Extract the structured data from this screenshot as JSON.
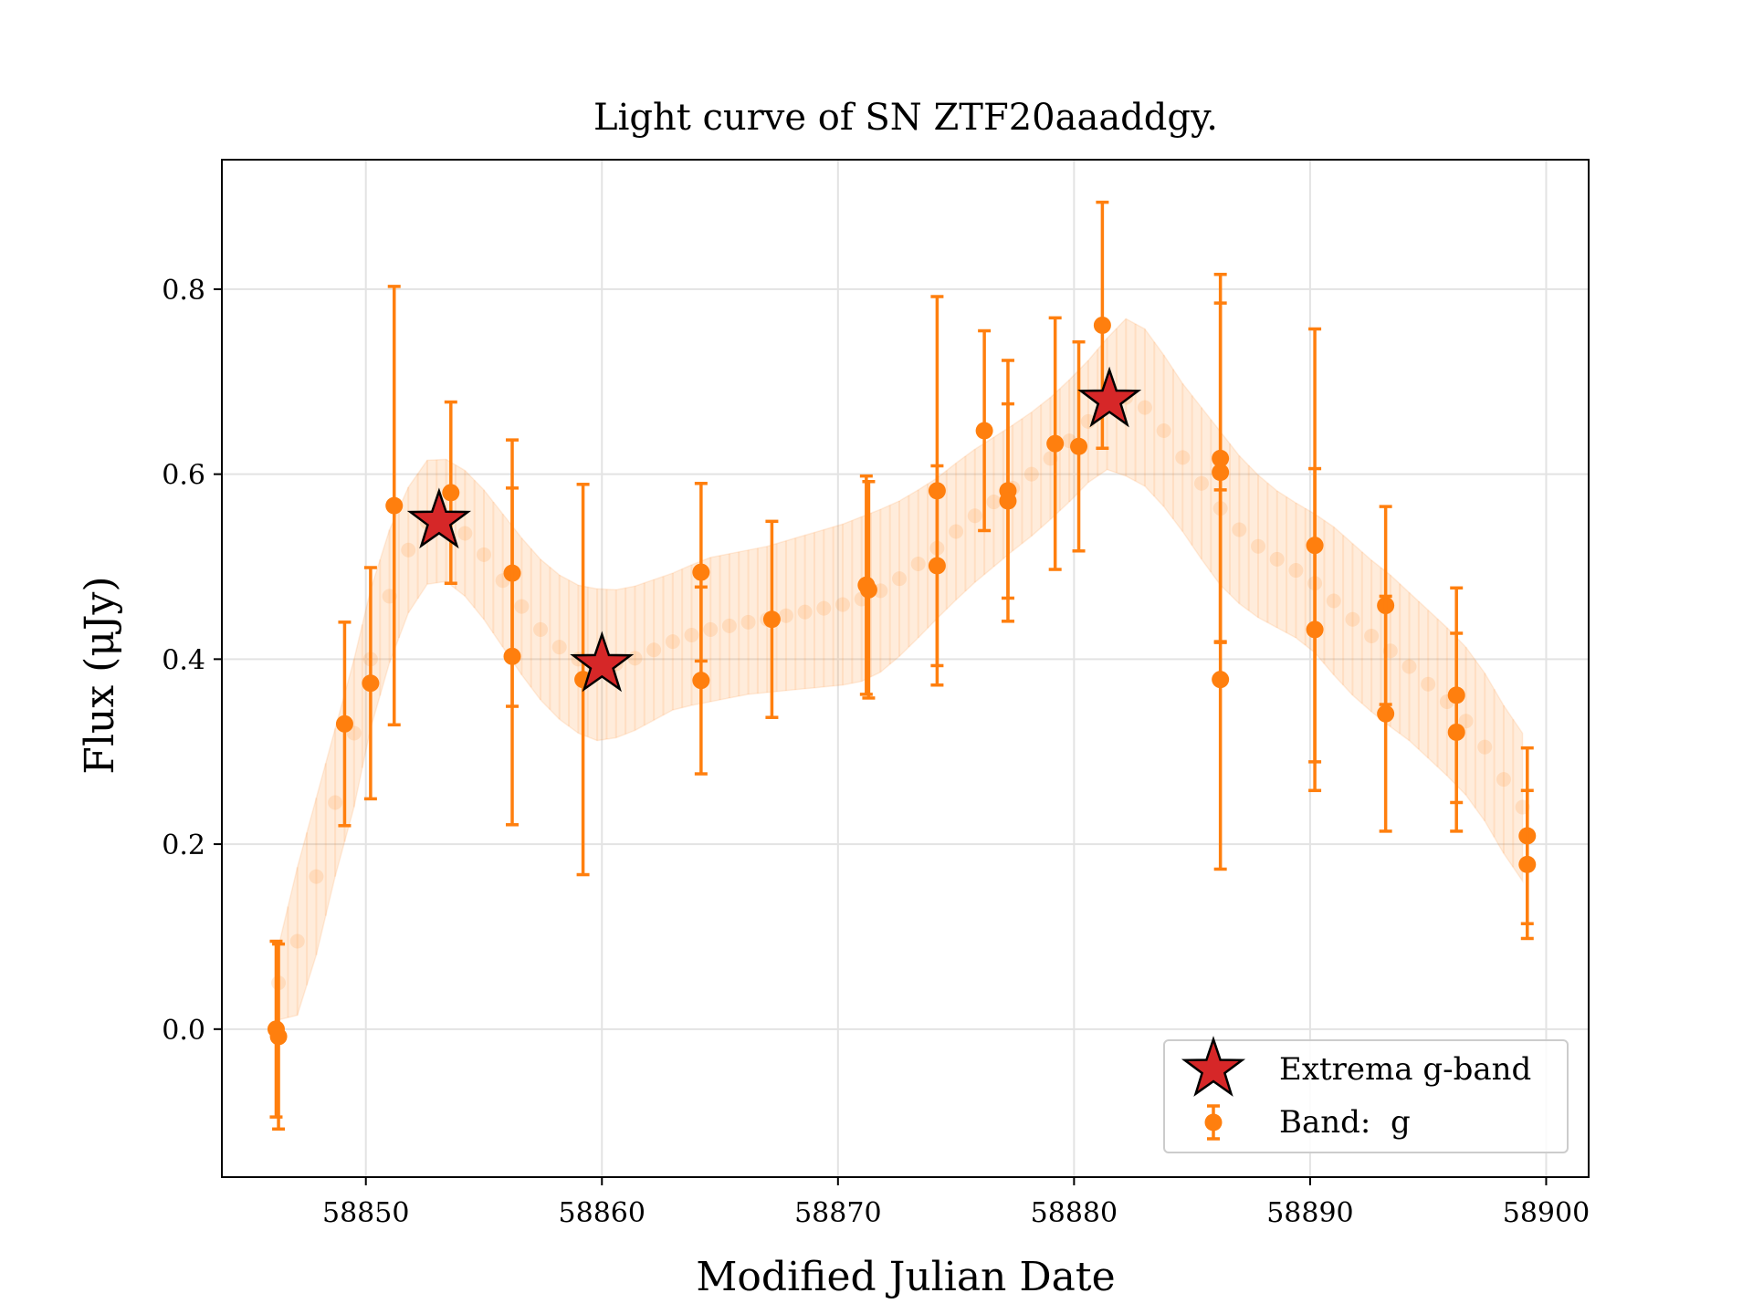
{
  "chart_data": {
    "type": "scatter",
    "title": "Light curve of SN ZTF20aaaddgy.",
    "xlabel": "Modified Julian Date",
    "ylabel": "Flux (μJy)",
    "xlim": [
      58843.9,
      58901.8
    ],
    "ylim": [
      -0.16,
      0.94
    ],
    "grid": true,
    "legend_position": "lower-right",
    "xticks": [
      {
        "value": 58850,
        "label": "58850"
      },
      {
        "value": 58860,
        "label": "58860"
      },
      {
        "value": 58870,
        "label": "58870"
      },
      {
        "value": 58880,
        "label": "58880"
      },
      {
        "value": 58890,
        "label": "58890"
      },
      {
        "value": 58900,
        "label": "58900"
      }
    ],
    "yticks": [
      {
        "value": 0.0,
        "label": "0.0"
      },
      {
        "value": 0.2,
        "label": "0.2"
      },
      {
        "value": 0.4,
        "label": "0.4"
      },
      {
        "value": 0.6,
        "label": "0.6"
      },
      {
        "value": 0.8,
        "label": "0.8"
      }
    ],
    "colors": {
      "band": "#ff7f0e",
      "band_light": "#ffbf8f",
      "extrema": "#d62728",
      "grid": "#e3e3e3"
    },
    "legend": {
      "extrema_label": "Extrema g-band",
      "band_label": "Band:  g"
    },
    "band_g": [
      {
        "x": 58846.2,
        "y": 0.0,
        "err": 0.095
      },
      {
        "x": 58846.3,
        "y": -0.008,
        "err": 0.1
      },
      {
        "x": 58849.1,
        "y": 0.33,
        "err": 0.11
      },
      {
        "x": 58850.2,
        "y": 0.374,
        "err": 0.125
      },
      {
        "x": 58851.2,
        "y": 0.566,
        "err": 0.237
      },
      {
        "x": 58853.6,
        "y": 0.58,
        "err": 0.098
      },
      {
        "x": 58856.2,
        "y": 0.493,
        "err": 0.144
      },
      {
        "x": 58856.2,
        "y": 0.403,
        "err": 0.182
      },
      {
        "x": 58859.2,
        "y": 0.378,
        "err": 0.211
      },
      {
        "x": 58864.2,
        "y": 0.494,
        "err": 0.096
      },
      {
        "x": 58864.2,
        "y": 0.377,
        "err": 0.101
      },
      {
        "x": 58867.2,
        "y": 0.443,
        "err": 0.106
      },
      {
        "x": 58871.2,
        "y": 0.48,
        "err": 0.118
      },
      {
        "x": 58871.3,
        "y": 0.475,
        "err": 0.117
      },
      {
        "x": 58874.2,
        "y": 0.582,
        "err": 0.21
      },
      {
        "x": 58874.2,
        "y": 0.501,
        "err": 0.108
      },
      {
        "x": 58876.2,
        "y": 0.647,
        "err": 0.108
      },
      {
        "x": 58877.2,
        "y": 0.582,
        "err": 0.141
      },
      {
        "x": 58877.2,
        "y": 0.571,
        "err": 0.105
      },
      {
        "x": 58879.2,
        "y": 0.633,
        "err": 0.136
      },
      {
        "x": 58880.2,
        "y": 0.63,
        "err": 0.113
      },
      {
        "x": 58881.2,
        "y": 0.761,
        "err": 0.133
      },
      {
        "x": 58886.2,
        "y": 0.617,
        "err": 0.199
      },
      {
        "x": 58886.2,
        "y": 0.602,
        "err": 0.183
      },
      {
        "x": 58886.2,
        "y": 0.378,
        "err": 0.205
      },
      {
        "x": 58890.2,
        "y": 0.523,
        "err": 0.234
      },
      {
        "x": 58890.2,
        "y": 0.432,
        "err": 0.174
      },
      {
        "x": 58893.2,
        "y": 0.458,
        "err": 0.107
      },
      {
        "x": 58893.2,
        "y": 0.341,
        "err": 0.127
      },
      {
        "x": 58896.2,
        "y": 0.361,
        "err": 0.116
      },
      {
        "x": 58896.2,
        "y": 0.321,
        "err": 0.107
      },
      {
        "x": 58899.2,
        "y": 0.209,
        "err": 0.095
      },
      {
        "x": 58899.2,
        "y": 0.178,
        "err": 0.08
      }
    ],
    "gp_fit": {
      "x": [
        58846.3,
        58847.1,
        58847.9,
        58848.7,
        58849.5,
        58850.2,
        58851.0,
        58851.8,
        58852.6,
        58853.4,
        58854.2,
        58855.0,
        58855.8,
        58856.6,
        58857.4,
        58858.2,
        58859.0,
        58859.8,
        58860.6,
        58861.4,
        58862.2,
        58863.0,
        58863.8,
        58864.6,
        58865.4,
        58866.2,
        58867.0,
        58867.8,
        58868.6,
        58869.4,
        58870.2,
        58871.0,
        58871.8,
        58872.6,
        58873.4,
        58874.2,
        58875.0,
        58875.8,
        58876.6,
        58877.4,
        58878.2,
        58879.0,
        58879.8,
        58880.6,
        58881.4,
        58882.2,
        58883.0,
        58883.8,
        58884.6,
        58885.4,
        58886.2,
        58887.0,
        58887.8,
        58888.6,
        58889.4,
        58890.2,
        58891.0,
        58891.8,
        58892.6,
        58893.4,
        58894.2,
        58895.0,
        58895.8,
        58896.6,
        58897.4,
        58898.2,
        58899.0
      ],
      "mean": [
        0.05,
        0.095,
        0.165,
        0.245,
        0.32,
        0.4,
        0.468,
        0.518,
        0.548,
        0.55,
        0.536,
        0.513,
        0.485,
        0.457,
        0.432,
        0.413,
        0.4,
        0.394,
        0.395,
        0.401,
        0.41,
        0.419,
        0.426,
        0.432,
        0.436,
        0.44,
        0.443,
        0.447,
        0.451,
        0.455,
        0.459,
        0.465,
        0.474,
        0.487,
        0.503,
        0.52,
        0.538,
        0.555,
        0.57,
        0.585,
        0.6,
        0.617,
        0.636,
        0.657,
        0.676,
        0.683,
        0.672,
        0.647,
        0.618,
        0.59,
        0.563,
        0.54,
        0.522,
        0.508,
        0.496,
        0.482,
        0.463,
        0.443,
        0.425,
        0.409,
        0.392,
        0.373,
        0.354,
        0.333,
        0.305,
        0.27,
        0.24
      ],
      "sigma": [
        0.04,
        0.08,
        0.085,
        0.08,
        0.08,
        0.075,
        0.072,
        0.068,
        0.067,
        0.066,
        0.068,
        0.07,
        0.072,
        0.074,
        0.076,
        0.078,
        0.08,
        0.082,
        0.08,
        0.078,
        0.076,
        0.074,
        0.076,
        0.078,
        0.078,
        0.078,
        0.079,
        0.081,
        0.083,
        0.085,
        0.087,
        0.089,
        0.088,
        0.084,
        0.08,
        0.076,
        0.074,
        0.072,
        0.07,
        0.068,
        0.067,
        0.066,
        0.066,
        0.066,
        0.071,
        0.085,
        0.085,
        0.082,
        0.08,
        0.082,
        0.083,
        0.08,
        0.077,
        0.074,
        0.073,
        0.075,
        0.08,
        0.082,
        0.082,
        0.082,
        0.08,
        0.08,
        0.08,
        0.08,
        0.08,
        0.08,
        0.08
      ]
    },
    "extrema": [
      {
        "x": 58853.1,
        "y": 0.549
      },
      {
        "x": 58860.0,
        "y": 0.394
      },
      {
        "x": 58881.5,
        "y": 0.68
      }
    ]
  }
}
